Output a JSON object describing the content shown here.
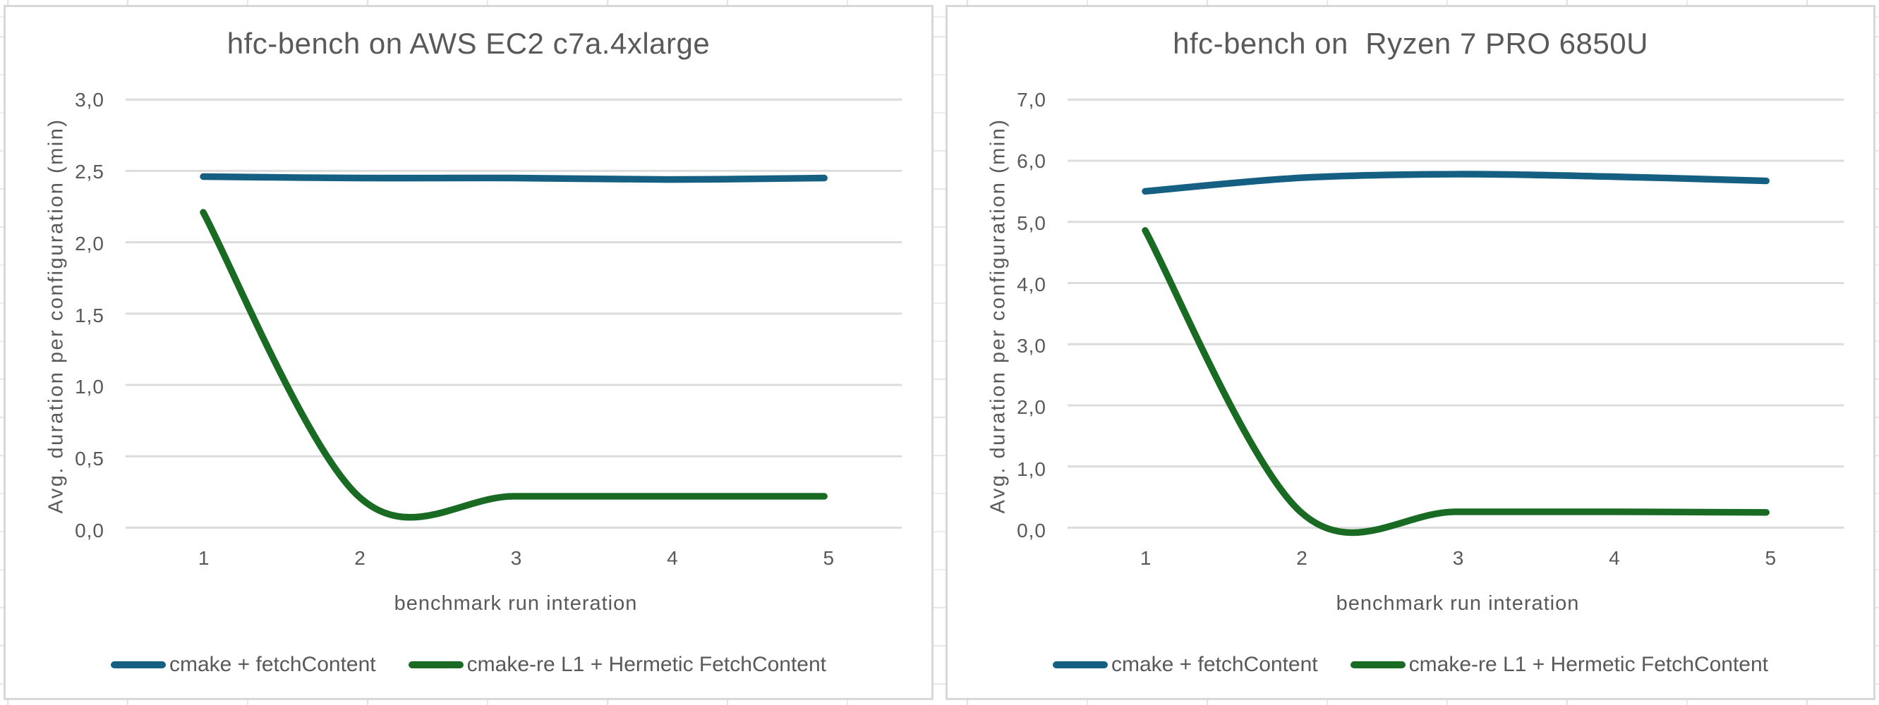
{
  "colors": {
    "series_blue": "#156082",
    "series_green": "#196B24",
    "text": "#595959",
    "gridline": "#DCDCDC",
    "chart_border": "#D8D8D8",
    "sheet_line": "#E3E3E3"
  },
  "chart_data": [
    {
      "type": "line",
      "title": "hfc-bench on AWS EC2 c7a.4xlarge",
      "xlabel": "benchmark run interation",
      "ylabel": "Avg. duration per configuration (min)",
      "x": [
        1,
        2,
        3,
        4,
        5
      ],
      "x_tick_labels": [
        "1",
        "2",
        "3",
        "4",
        "5"
      ],
      "ylim": [
        0,
        3
      ],
      "y_tick_labels": [
        "0,0",
        "0,5",
        "1,0",
        "1,5",
        "2,0",
        "2,5",
        "3,0"
      ],
      "grid": true,
      "legend_position": "bottom",
      "smoothed_lines": true,
      "series": [
        {
          "name": "cmake + fetchContent",
          "color": "#156082",
          "values": [
            2.46,
            2.45,
            2.45,
            2.44,
            2.45
          ]
        },
        {
          "name": "cmake-re L1 + Hermetic FetchContent",
          "color": "#196B24",
          "values": [
            2.21,
            0.22,
            0.22,
            0.22,
            0.22
          ]
        }
      ]
    },
    {
      "type": "line",
      "title": "hfc-bench on  Ryzen 7 PRO 6850U",
      "xlabel": "benchmark run interation",
      "ylabel": "Avg. duration per configuration (min)",
      "x": [
        1,
        2,
        3,
        4,
        5
      ],
      "x_tick_labels": [
        "1",
        "2",
        "3",
        "4",
        "5"
      ],
      "ylim": [
        0,
        7
      ],
      "y_tick_labels": [
        "0,0",
        "1,0",
        "2,0",
        "3,0",
        "4,0",
        "5,0",
        "6,0",
        "7,0"
      ],
      "grid": true,
      "legend_position": "bottom",
      "smoothed_lines": true,
      "series": [
        {
          "name": "cmake + fetchContent",
          "color": "#156082",
          "values": [
            5.5,
            5.72,
            5.78,
            5.74,
            5.67
          ]
        },
        {
          "name": "cmake-re L1 + Hermetic FetchContent",
          "color": "#196B24",
          "values": [
            4.86,
            0.26,
            0.26,
            0.26,
            0.25
          ]
        }
      ]
    }
  ]
}
